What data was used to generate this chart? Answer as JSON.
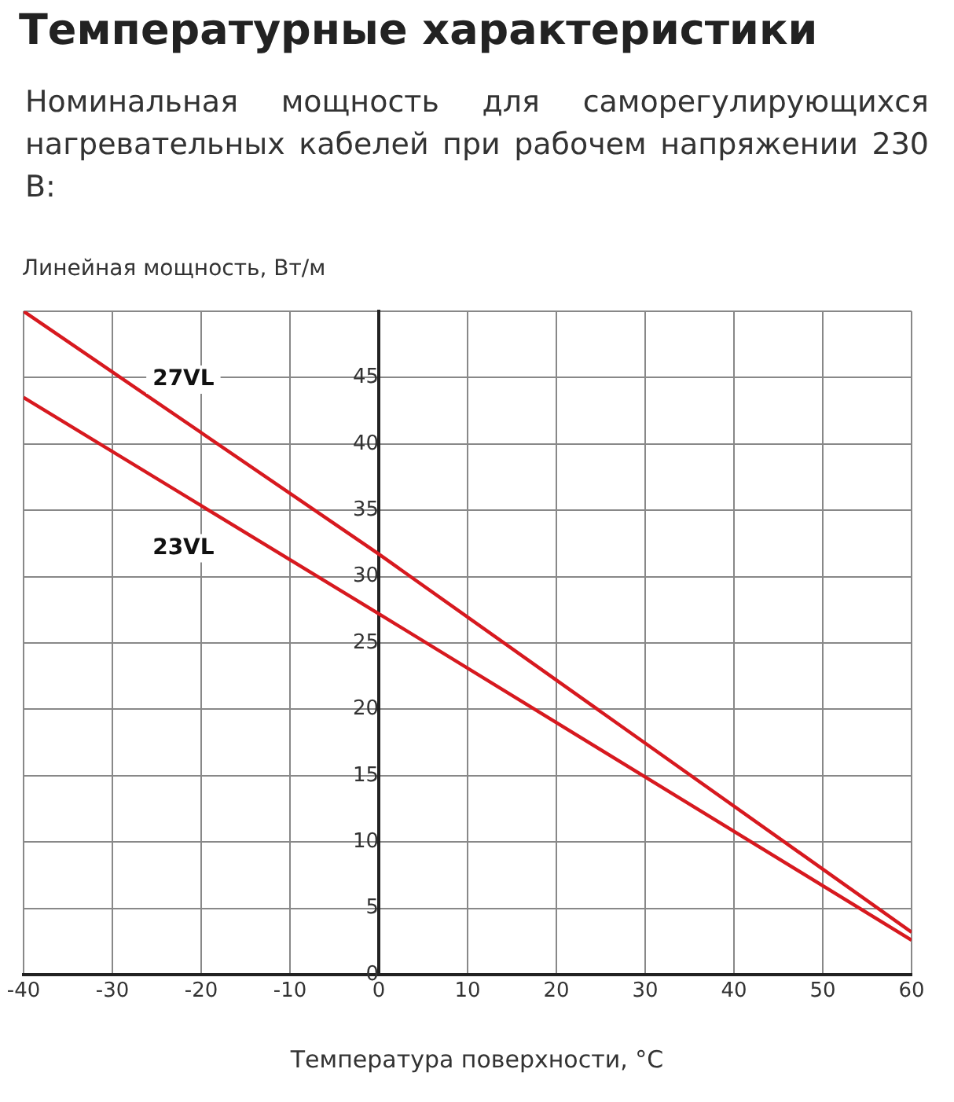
{
  "chart_data": {
    "type": "line",
    "title": "Температурные характеристики",
    "subtitle": "Номинальная мощность для саморегулирующихся нагревательных кабелей при рабочем напряжении 230 В:",
    "xlabel": "Температура поверхности, °C",
    "ylabel": "Линейная мощность, Вт/м",
    "x": [
      -40,
      0,
      60
    ],
    "series": [
      {
        "name": "27VL",
        "color": "#d7191f",
        "values": [
          50,
          31.7,
          3.2
        ]
      },
      {
        "name": "23VL",
        "color": "#d7191f",
        "values": [
          43.5,
          27.2,
          2.6
        ]
      }
    ],
    "xlim": [
      -40,
      60
    ],
    "xticks": [
      -40,
      -30,
      -20,
      -10,
      0,
      10,
      20,
      30,
      40,
      50,
      60
    ],
    "ylim": [
      0,
      50
    ],
    "yticks": [
      0,
      5,
      10,
      15,
      20,
      25,
      30,
      35,
      40,
      45,
      {
        "value": 50,
        "label": null
      }
    ],
    "grid": true,
    "legend": false,
    "marker": "none",
    "line_style": "solid"
  }
}
